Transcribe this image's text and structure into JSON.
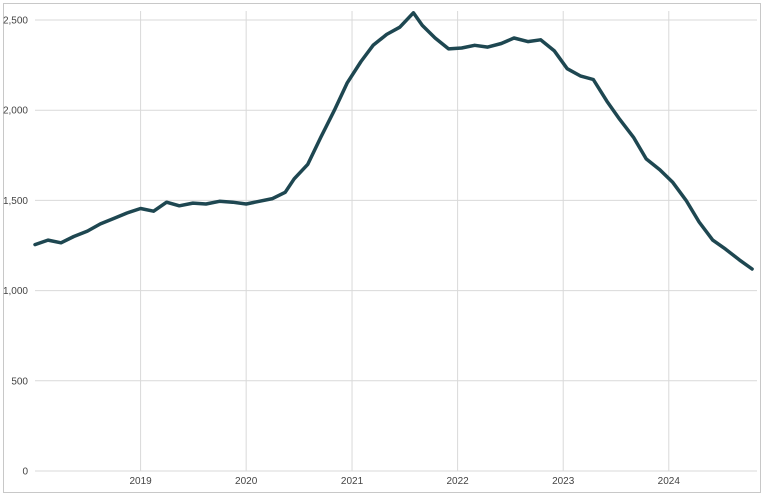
{
  "chart_data": {
    "type": "line",
    "title": "",
    "xlabel": "",
    "ylabel": "",
    "grid": true,
    "ylim": [
      0,
      2500
    ],
    "xlim": [
      "2018-01-01",
      "2024-11-01"
    ],
    "y_ticks": [
      0,
      500,
      1000,
      1500,
      2000,
      2500
    ],
    "y_tick_labels": [
      "0",
      "500",
      "1,000",
      "1,500",
      "2,000",
      "2,500"
    ],
    "x_ticks": [
      "2019-01-01",
      "2020-01-01",
      "2021-01-01",
      "2022-01-01",
      "2023-01-01",
      "2024-01-01"
    ],
    "x_tick_labels": [
      "2019",
      "2020",
      "2021",
      "2022",
      "2023",
      "2024"
    ],
    "series": [
      {
        "color": "#1e4751",
        "points": [
          [
            "2018-01-01",
            1255
          ],
          [
            "2018-02-15",
            1280
          ],
          [
            "2018-04-01",
            1265
          ],
          [
            "2018-05-15",
            1300
          ],
          [
            "2018-07-01",
            1330
          ],
          [
            "2018-08-15",
            1370
          ],
          [
            "2018-10-01",
            1400
          ],
          [
            "2018-11-15",
            1430
          ],
          [
            "2019-01-01",
            1455
          ],
          [
            "2019-02-15",
            1440
          ],
          [
            "2019-04-01",
            1490
          ],
          [
            "2019-05-15",
            1470
          ],
          [
            "2019-07-01",
            1485
          ],
          [
            "2019-08-15",
            1480
          ],
          [
            "2019-10-01",
            1495
          ],
          [
            "2019-11-15",
            1490
          ],
          [
            "2020-01-01",
            1480
          ],
          [
            "2020-02-15",
            1495
          ],
          [
            "2020-04-01",
            1510
          ],
          [
            "2020-05-15",
            1545
          ],
          [
            "2020-06-15",
            1620
          ],
          [
            "2020-08-01",
            1700
          ],
          [
            "2020-09-15",
            1850
          ],
          [
            "2020-11-01",
            2000
          ],
          [
            "2020-12-15",
            2150
          ],
          [
            "2021-02-01",
            2270
          ],
          [
            "2021-03-15",
            2360
          ],
          [
            "2021-05-01",
            2420
          ],
          [
            "2021-06-15",
            2460
          ],
          [
            "2021-08-01",
            2540
          ],
          [
            "2021-09-01",
            2470
          ],
          [
            "2021-10-15",
            2400
          ],
          [
            "2021-12-01",
            2340
          ],
          [
            "2022-01-15",
            2345
          ],
          [
            "2022-03-01",
            2360
          ],
          [
            "2022-04-15",
            2350
          ],
          [
            "2022-06-01",
            2370
          ],
          [
            "2022-07-15",
            2400
          ],
          [
            "2022-09-01",
            2380
          ],
          [
            "2022-10-15",
            2390
          ],
          [
            "2022-12-01",
            2330
          ],
          [
            "2023-01-15",
            2230
          ],
          [
            "2023-03-01",
            2190
          ],
          [
            "2023-04-15",
            2170
          ],
          [
            "2023-06-01",
            2050
          ],
          [
            "2023-07-15",
            1950
          ],
          [
            "2023-09-01",
            1850
          ],
          [
            "2023-10-15",
            1730
          ],
          [
            "2023-12-01",
            1670
          ],
          [
            "2024-01-15",
            1600
          ],
          [
            "2024-03-01",
            1500
          ],
          [
            "2024-04-15",
            1380
          ],
          [
            "2024-06-01",
            1280
          ],
          [
            "2024-07-15",
            1230
          ],
          [
            "2024-09-01",
            1170
          ],
          [
            "2024-10-15",
            1120
          ]
        ]
      }
    ]
  }
}
